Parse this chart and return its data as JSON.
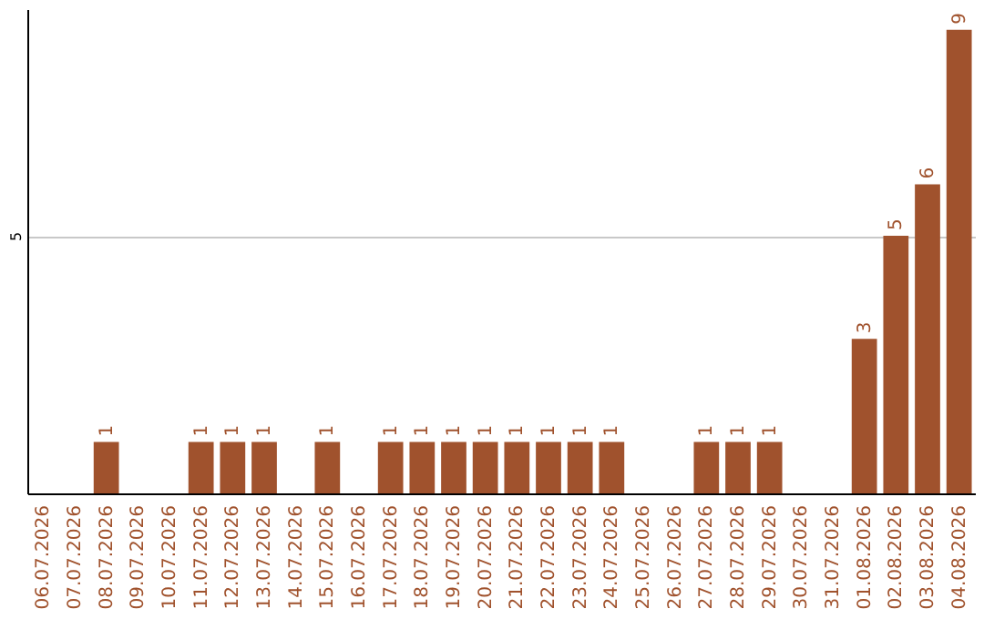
{
  "chart_data": {
    "type": "bar",
    "categories": [
      "06.07.2026",
      "07.07.2026",
      "08.07.2026",
      "09.07.2026",
      "10.07.2026",
      "11.07.2026",
      "12.07.2026",
      "13.07.2026",
      "14.07.2026",
      "15.07.2026",
      "16.07.2026",
      "17.07.2026",
      "18.07.2026",
      "19.07.2026",
      "20.07.2026",
      "21.07.2026",
      "22.07.2026",
      "23.07.2026",
      "24.07.2026",
      "25.07.2026",
      "26.07.2026",
      "27.07.2026",
      "28.07.2026",
      "29.07.2026",
      "30.07.2026",
      "31.07.2026",
      "01.08.2026",
      "02.08.2026",
      "03.08.2026",
      "04.08.2026"
    ],
    "values": [
      null,
      null,
      1,
      null,
      null,
      1,
      1,
      1,
      null,
      1,
      null,
      1,
      1,
      1,
      1,
      1,
      1,
      1,
      1,
      null,
      null,
      1,
      1,
      1,
      null,
      null,
      3,
      5,
      6,
      9
    ],
    "color": "#a0522d",
    "ylim": [
      0,
      9.4
    ],
    "yticks": [
      5
    ],
    "grid": "y",
    "data_labels": true
  }
}
